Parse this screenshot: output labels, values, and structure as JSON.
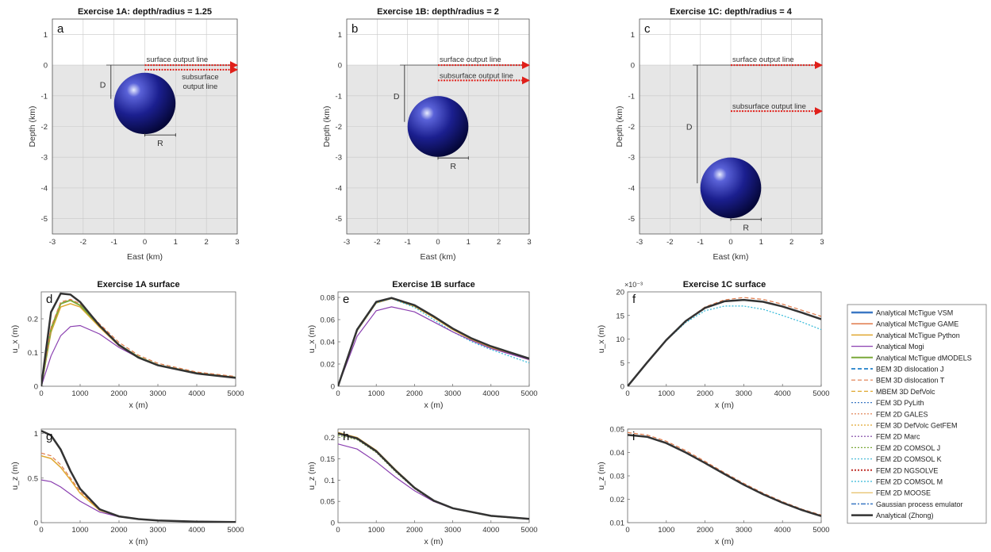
{
  "colors": {
    "axes_bg": "#e6e6e6",
    "sphere": "#1b1f8f",
    "arrow": "#e0201a",
    "VSM": "#3b78c4",
    "GAME": "#e07a4a",
    "Python": "#e0a830",
    "Mogi": "#8a3fb0",
    "dMODELS": "#7aa83a",
    "Zhong": "#333333"
  },
  "geometry_panels": [
    {
      "letter": "a",
      "title": "Exercise 1A: depth/radius = 1.25",
      "depth": -1.25,
      "radius": 1.0,
      "subsurface_depth": -0.15,
      "xlabel": "East (km)",
      "ylabel": "Depth (km)",
      "xticks": [
        "-3",
        "-2",
        "-1",
        "0",
        "1",
        "2",
        "3"
      ],
      "yticks": [
        "1",
        "0",
        "-1",
        "-2",
        "-3",
        "-4",
        "-5"
      ],
      "surface_label": "surface output line",
      "subsurface_label": "subsurface output line",
      "subsurface_label_lines": [
        "subsurface",
        "output line"
      ],
      "d_label": "D",
      "r_label": "R"
    },
    {
      "letter": "b",
      "title": "Exercise 1B: depth/radius = 2",
      "depth": -2.0,
      "radius": 1.0,
      "subsurface_depth": -0.5,
      "xlabel": "East (km)",
      "ylabel": "Depth (km)",
      "xticks": [
        "-3",
        "-2",
        "-1",
        "0",
        "1",
        "2",
        "3"
      ],
      "yticks": [
        "1",
        "0",
        "-1",
        "-2",
        "-3",
        "-4",
        "-5"
      ],
      "surface_label": "surface output line",
      "subsurface_label": "subsurface output line",
      "subsurface_label_lines": [
        "subsurface output line"
      ],
      "d_label": "D",
      "r_label": "R"
    },
    {
      "letter": "c",
      "title": "Exercise 1C: depth/radius = 4",
      "depth": -4.0,
      "radius": 1.0,
      "subsurface_depth": -1.5,
      "xlabel": "East (km)",
      "ylabel": "Depth (km)",
      "xticks": [
        "-3",
        "-2",
        "-1",
        "0",
        "1",
        "2",
        "3"
      ],
      "yticks": [
        "1",
        "0",
        "-1",
        "-2",
        "-3",
        "-4",
        "-5"
      ],
      "surface_label": "surface output line",
      "subsurface_label": "subsurface output line",
      "subsurface_label_lines": [
        "subsurface output line"
      ],
      "d_label": "D",
      "r_label": "R"
    }
  ],
  "legend": [
    {
      "label": "Analytical McTigue VSM",
      "color": "#3b78c4",
      "dash": "",
      "width": 2.5
    },
    {
      "label": "Analytical McTigue GAME",
      "color": "#e07a4a",
      "dash": "",
      "width": 1.5
    },
    {
      "label": "Analytical McTigue Python",
      "color": "#e0a830",
      "dash": "",
      "width": 1.5
    },
    {
      "label": "Analytical Mogi",
      "color": "#8a3fb0",
      "dash": "",
      "width": 1.2
    },
    {
      "label": "Analytical McTigue dMODELS",
      "color": "#7aa83a",
      "dash": "",
      "width": 2
    },
    {
      "label": "BEM 3D dislocation J",
      "color": "#3b8fd0",
      "dash": "5,3",
      "width": 2
    },
    {
      "label": "BEM 3D dislocation T",
      "color": "#e07a4a",
      "dash": "5,3",
      "width": 1.2
    },
    {
      "label": "MBEM 3D DefVolc",
      "color": "#e0a830",
      "dash": "5,3",
      "width": 1.2
    },
    {
      "label": "FEM 3D PyLith",
      "color": "#3b78c4",
      "dash": "2,2",
      "width": 1.2
    },
    {
      "label": "FEM 2D GALES",
      "color": "#e07a4a",
      "dash": "2,2",
      "width": 1.2
    },
    {
      "label": "FEM 3D DefVolc GetFEM",
      "color": "#e0a830",
      "dash": "2,2",
      "width": 1.2
    },
    {
      "label": "FEM 2D Marc",
      "color": "#7a3fa0",
      "dash": "2,2",
      "width": 1.2
    },
    {
      "label": "FEM 2D COMSOL J",
      "color": "#7aa83a",
      "dash": "2,2",
      "width": 1.2
    },
    {
      "label": "FEM 2D COMSOL K",
      "color": "#4fbcd8",
      "dash": "2,2",
      "width": 1.2
    },
    {
      "label": "FEM 2D NGSOLVE",
      "color": "#c0302a",
      "dash": "2,2",
      "width": 2
    },
    {
      "label": "FEM 2D COMSOL M",
      "color": "#30b8d8",
      "dash": "2,2",
      "width": 1.2
    },
    {
      "label": "FEM 2D MOOSE",
      "color": "#e0b040",
      "dash": "",
      "width": 1
    },
    {
      "label": "Gaussian process emulator",
      "color": "#3b78c4",
      "dash": "6,2,2,2",
      "width": 1.5
    },
    {
      "label": "Analytical (Zhong)",
      "color": "#333333",
      "dash": "",
      "width": 2.5
    }
  ],
  "chart_data": [
    {
      "panel": "d",
      "title": "Exercise 1A surface",
      "type": "line",
      "xlabel": "x (m)",
      "ylabel": "u_x (m)",
      "xlim": [
        0,
        5000
      ],
      "ylim": [
        0,
        0.28
      ],
      "yticks": [
        0,
        0.1,
        0.2
      ],
      "xticks": [
        0,
        1000,
        2000,
        3000,
        4000,
        5000
      ],
      "exponent": "",
      "series": [
        {
          "name": "Analytical McTigue Python",
          "x": [
            0,
            250,
            500,
            750,
            1000,
            1500,
            2000,
            2500,
            3000,
            4000,
            5000
          ],
          "y": [
            0,
            0.16,
            0.235,
            0.245,
            0.235,
            0.175,
            0.12,
            0.085,
            0.062,
            0.038,
            0.026
          ]
        },
        {
          "name": "Analytical McTigue dMODELS",
          "x": [
            0,
            250,
            500,
            750,
            1000,
            1500,
            2000,
            2500,
            3000,
            4000,
            5000
          ],
          "y": [
            0,
            0.17,
            0.245,
            0.255,
            0.24,
            0.18,
            0.123,
            0.087,
            0.063,
            0.039,
            0.026
          ]
        },
        {
          "name": "BEM 3D dislocation T",
          "x": [
            0,
            250,
            500,
            750,
            1000,
            1500,
            2000,
            2500,
            3000,
            4000,
            5000
          ],
          "y": [
            0,
            0.175,
            0.25,
            0.258,
            0.245,
            0.185,
            0.13,
            0.092,
            0.068,
            0.042,
            0.029
          ]
        },
        {
          "name": "Analytical Mogi",
          "x": [
            0,
            250,
            500,
            750,
            1000,
            1500,
            2000,
            2500,
            3000,
            4000,
            5000
          ],
          "y": [
            0,
            0.09,
            0.15,
            0.177,
            0.18,
            0.155,
            0.115,
            0.085,
            0.063,
            0.038,
            0.025
          ]
        },
        {
          "name": "Analytical (Zhong)",
          "x": [
            0,
            250,
            500,
            750,
            1000,
            1500,
            2000,
            2500,
            3000,
            4000,
            5000
          ],
          "y": [
            0,
            0.22,
            0.275,
            0.272,
            0.25,
            0.18,
            0.122,
            0.085,
            0.062,
            0.038,
            0.025
          ]
        }
      ]
    },
    {
      "panel": "e",
      "title": "Exercise 1B surface",
      "type": "line",
      "xlabel": "x (m)",
      "ylabel": "u_x (m)",
      "xlim": [
        0,
        5000
      ],
      "ylim": [
        0,
        0.085
      ],
      "yticks": [
        0,
        0.02,
        0.04,
        0.06,
        0.08
      ],
      "xticks": [
        0,
        1000,
        2000,
        3000,
        4000,
        5000
      ],
      "exponent": "",
      "series": [
        {
          "name": "Analytical McTigue Python",
          "x": [
            0,
            500,
            1000,
            1400,
            2000,
            2500,
            3000,
            3500,
            4000,
            5000
          ],
          "y": [
            0,
            0.05,
            0.075,
            0.079,
            0.072,
            0.062,
            0.051,
            0.042,
            0.035,
            0.024
          ]
        },
        {
          "name": "FEM 2D COMSOL M",
          "x": [
            0,
            500,
            1000,
            1400,
            2000,
            2500,
            3000,
            3500,
            4000,
            5000
          ],
          "y": [
            0,
            0.05,
            0.075,
            0.079,
            0.071,
            0.06,
            0.049,
            0.04,
            0.033,
            0.021
          ]
        },
        {
          "name": "Analytical Mogi",
          "x": [
            0,
            500,
            1000,
            1400,
            2000,
            2500,
            3000,
            3500,
            4000,
            5000
          ],
          "y": [
            0,
            0.045,
            0.068,
            0.0715,
            0.067,
            0.058,
            0.049,
            0.041,
            0.034,
            0.024
          ]
        },
        {
          "name": "Analytical (Zhong)",
          "x": [
            0,
            500,
            1000,
            1400,
            2000,
            2500,
            3000,
            3500,
            4000,
            5000
          ],
          "y": [
            0,
            0.051,
            0.076,
            0.0795,
            0.073,
            0.063,
            0.052,
            0.043,
            0.036,
            0.025
          ]
        }
      ]
    },
    {
      "panel": "f",
      "title": "Exercise 1C surface",
      "type": "line",
      "xlabel": "x (m)",
      "ylabel": "u_x (m)",
      "xlim": [
        0,
        5000
      ],
      "ylim": [
        0,
        20
      ],
      "yticks": [
        0,
        5,
        10,
        15,
        20
      ],
      "xticks": [
        0,
        1000,
        2000,
        3000,
        4000,
        5000
      ],
      "exponent": "×10⁻³",
      "series": [
        {
          "name": "FEM 2D COMSOL M",
          "x": [
            0,
            500,
            1000,
            1500,
            2000,
            2500,
            3000,
            3500,
            4000,
            4500,
            5000
          ],
          "y": [
            0,
            5,
            9.7,
            13.5,
            16,
            17,
            17,
            16.3,
            15,
            13.6,
            12
          ]
        },
        {
          "name": "BEM 3D dislocation T",
          "x": [
            0,
            500,
            1000,
            1500,
            2000,
            2500,
            3000,
            3500,
            4000,
            4500,
            5000
          ],
          "y": [
            0,
            5.1,
            9.9,
            13.9,
            16.8,
            18.3,
            18.8,
            18.4,
            17.4,
            16.1,
            14.8
          ]
        },
        {
          "name": "Analytical (Zhong)",
          "x": [
            0,
            500,
            1000,
            1500,
            2000,
            2500,
            3000,
            3500,
            4000,
            4500,
            5000
          ],
          "y": [
            0,
            5,
            9.8,
            13.8,
            16.6,
            18,
            18.3,
            17.9,
            16.9,
            15.6,
            14.2
          ]
        }
      ]
    },
    {
      "panel": "g",
      "title": "",
      "type": "line",
      "xlabel": "x (m)",
      "ylabel": "u_z (m)",
      "xlim": [
        0,
        5000
      ],
      "ylim": [
        0,
        1.05
      ],
      "yticks": [
        0,
        0.5,
        1
      ],
      "xticks": [
        0,
        1000,
        2000,
        3000,
        4000,
        5000
      ],
      "exponent": "",
      "series": [
        {
          "name": "Analytical McTigue Python",
          "x": [
            0,
            250,
            500,
            750,
            1000,
            1500,
            2000,
            2500,
            3000,
            4000,
            5000
          ],
          "y": [
            0.75,
            0.72,
            0.62,
            0.48,
            0.33,
            0.14,
            0.07,
            0.04,
            0.025,
            0.012,
            0.007
          ]
        },
        {
          "name": "BEM 3D dislocation T",
          "x": [
            0,
            250,
            500,
            750,
            1000,
            1500,
            2000,
            2500,
            3000,
            4000,
            5000
          ],
          "y": [
            0.78,
            0.75,
            0.65,
            0.5,
            0.35,
            0.15,
            0.075,
            0.043,
            0.027,
            0.013,
            0.008
          ]
        },
        {
          "name": "Analytical Mogi",
          "x": [
            0,
            250,
            500,
            750,
            1000,
            1500,
            2000,
            2500,
            3000,
            4000,
            5000
          ],
          "y": [
            0.48,
            0.46,
            0.4,
            0.32,
            0.24,
            0.12,
            0.065,
            0.038,
            0.024,
            0.011,
            0.006
          ]
        },
        {
          "name": "Analytical (Zhong)",
          "x": [
            0,
            250,
            500,
            750,
            1000,
            1500,
            2000,
            2500,
            3000,
            4000,
            5000
          ],
          "y": [
            1.03,
            0.98,
            0.82,
            0.58,
            0.38,
            0.15,
            0.07,
            0.04,
            0.025,
            0.012,
            0.007
          ]
        }
      ]
    },
    {
      "panel": "h",
      "title": "",
      "type": "line",
      "xlabel": "x (m)",
      "ylabel": "u_z (m)",
      "xlim": [
        0,
        5000
      ],
      "ylim": [
        0,
        0.22
      ],
      "yticks": [
        0,
        0.05,
        0.1,
        0.15,
        0.2
      ],
      "xticks": [
        0,
        1000,
        2000,
        3000,
        4000,
        5000
      ],
      "exponent": "",
      "series": [
        {
          "name": "FEM 2D COMSOL J",
          "x": [
            0,
            500,
            1000,
            1500,
            2000,
            2500,
            3000,
            4000,
            5000
          ],
          "y": [
            0.205,
            0.195,
            0.165,
            0.12,
            0.08,
            0.05,
            0.033,
            0.015,
            0.008
          ]
        },
        {
          "name": "Analytical McTigue Python",
          "x": [
            0,
            500,
            1000,
            1500,
            2000,
            2500,
            3000,
            4000,
            5000
          ],
          "y": [
            0.212,
            0.2,
            0.17,
            0.125,
            0.083,
            0.052,
            0.034,
            0.016,
            0.009
          ]
        },
        {
          "name": "Analytical Mogi",
          "x": [
            0,
            500,
            1000,
            1500,
            2000,
            2500,
            3000,
            4000,
            5000
          ],
          "y": [
            0.185,
            0.173,
            0.143,
            0.107,
            0.075,
            0.05,
            0.033,
            0.016,
            0.008
          ]
        },
        {
          "name": "Analytical (Zhong)",
          "x": [
            0,
            500,
            1000,
            1500,
            2000,
            2500,
            3000,
            4000,
            5000
          ],
          "y": [
            0.21,
            0.198,
            0.168,
            0.123,
            0.082,
            0.052,
            0.034,
            0.016,
            0.009
          ]
        }
      ]
    },
    {
      "panel": "i",
      "title": "",
      "type": "line",
      "xlabel": "x (m)",
      "ylabel": "u_z (m)",
      "xlim": [
        0,
        5000
      ],
      "ylim": [
        0.01,
        0.05
      ],
      "yticks": [
        0.01,
        0.02,
        0.03,
        0.04,
        0.05
      ],
      "xticks": [
        0,
        1000,
        2000,
        3000,
        4000,
        5000
      ],
      "exponent": "",
      "series": [
        {
          "name": "BEM 3D dislocation T",
          "x": [
            0,
            500,
            1000,
            1500,
            2000,
            2500,
            3000,
            3500,
            4000,
            4500,
            5000
          ],
          "y": [
            0.0485,
            0.0475,
            0.0448,
            0.0408,
            0.0362,
            0.0314,
            0.0268,
            0.0226,
            0.019,
            0.0158,
            0.0133
          ]
        },
        {
          "name": "Analytical (Zhong)",
          "x": [
            0,
            500,
            1000,
            1500,
            2000,
            2500,
            3000,
            3500,
            4000,
            4500,
            5000
          ],
          "y": [
            0.0475,
            0.0467,
            0.044,
            0.04,
            0.0355,
            0.0308,
            0.0262,
            0.0221,
            0.0185,
            0.0154,
            0.0128
          ]
        }
      ]
    }
  ]
}
